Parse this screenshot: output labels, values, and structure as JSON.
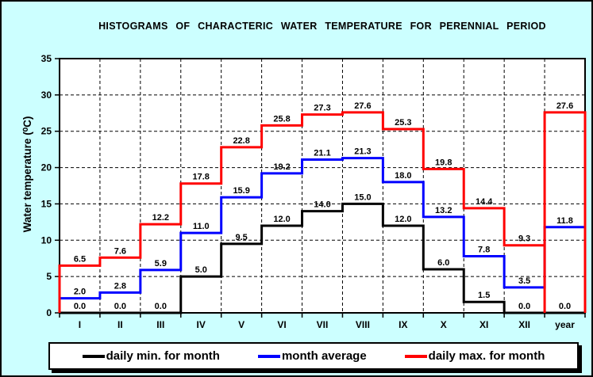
{
  "colors": {
    "background": "#ccffff",
    "plot_background": "#ffffff",
    "axis": "#000000",
    "text": "#000000",
    "legend_background": "#ffffff",
    "legend_shadow": "#000000"
  },
  "chart_data": {
    "type": "line",
    "subtype": "step-histogram",
    "title": "HISTOGRAMS OF CHARACTERIC WATER TEMPERATURE FOR PERENNIAL PERIOD",
    "xlabel": "",
    "ylabel": "Water temperature (⁰C)",
    "ylim": [
      0,
      35
    ],
    "ytick_step": 5,
    "yticks": [
      0,
      5,
      10,
      15,
      20,
      25,
      30,
      35
    ],
    "grid": "dashed",
    "legend_position": "bottom",
    "value_labels": "shown above each step, one decimal",
    "categories": [
      "I",
      "II",
      "III",
      "IV",
      "V",
      "VI",
      "VII",
      "VIII",
      "IX",
      "X",
      "XI",
      "XII",
      "year"
    ],
    "series": [
      {
        "name": "daily min. for month",
        "color": "#000000",
        "values": [
          0.0,
          0.0,
          0.0,
          5.0,
          9.5,
          12.0,
          14.0,
          15.0,
          12.0,
          6.0,
          1.5,
          0.0,
          0.0
        ]
      },
      {
        "name": "month average",
        "color": "#0000ff",
        "values": [
          2.0,
          2.8,
          5.9,
          11.0,
          15.9,
          19.2,
          21.1,
          21.3,
          18.0,
          13.2,
          7.8,
          3.5,
          11.8
        ]
      },
      {
        "name": "daily max. for month",
        "color": "#ff0000",
        "year_box": true,
        "values": [
          6.5,
          7.6,
          12.2,
          17.8,
          22.8,
          25.8,
          27.3,
          27.6,
          25.3,
          19.8,
          14.4,
          9.3,
          27.6
        ]
      }
    ]
  }
}
